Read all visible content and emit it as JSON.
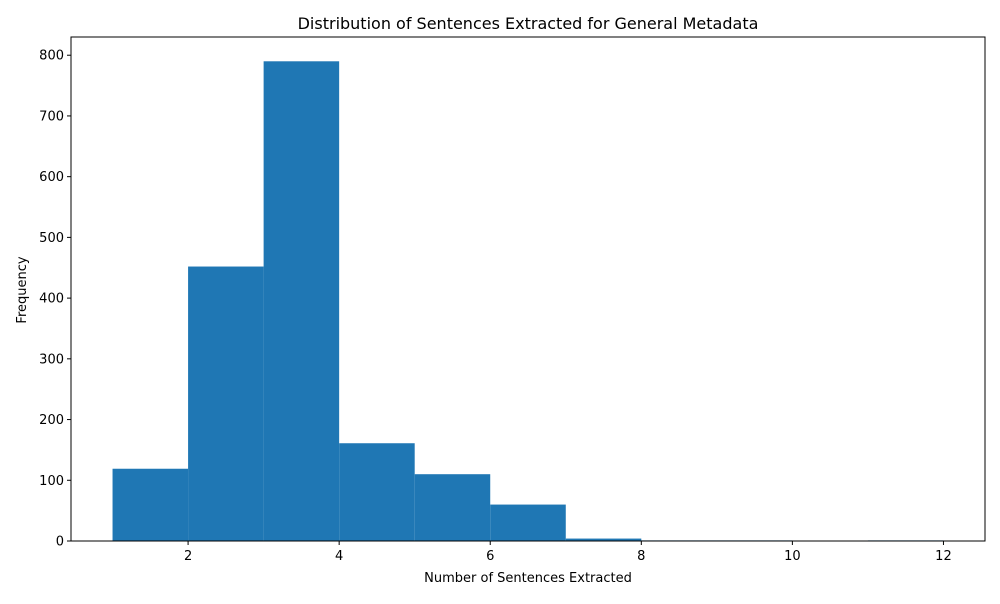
{
  "chart_data": {
    "type": "bar",
    "title": "Distribution of Sentences Extracted for General Metadata",
    "xlabel": "Number of Sentences Extracted",
    "ylabel": "Frequency",
    "xlim": [
      0.45,
      12.55
    ],
    "ylim": [
      0,
      830
    ],
    "xticks": [
      2,
      4,
      6,
      8,
      10,
      12
    ],
    "yticks": [
      0,
      100,
      200,
      300,
      400,
      500,
      600,
      700,
      800
    ],
    "bins": [
      {
        "x0": 1,
        "x1": 2,
        "value": 119
      },
      {
        "x0": 2,
        "x1": 3,
        "value": 452
      },
      {
        "x0": 3,
        "x1": 4,
        "value": 790
      },
      {
        "x0": 4,
        "x1": 5,
        "value": 161
      },
      {
        "x0": 5,
        "x1": 6,
        "value": 110
      },
      {
        "x0": 6,
        "x1": 7,
        "value": 60
      },
      {
        "x0": 7,
        "x1": 8,
        "value": 4
      },
      {
        "x0": 8,
        "x1": 9,
        "value": 1
      },
      {
        "x0": 9,
        "x1": 10,
        "value": 1
      },
      {
        "x0": 10,
        "x1": 11,
        "value": 0
      },
      {
        "x0": 11,
        "x1": 12,
        "value": 1
      }
    ],
    "bar_color": "#1f77b4",
    "grid": false,
    "legend": false
  }
}
